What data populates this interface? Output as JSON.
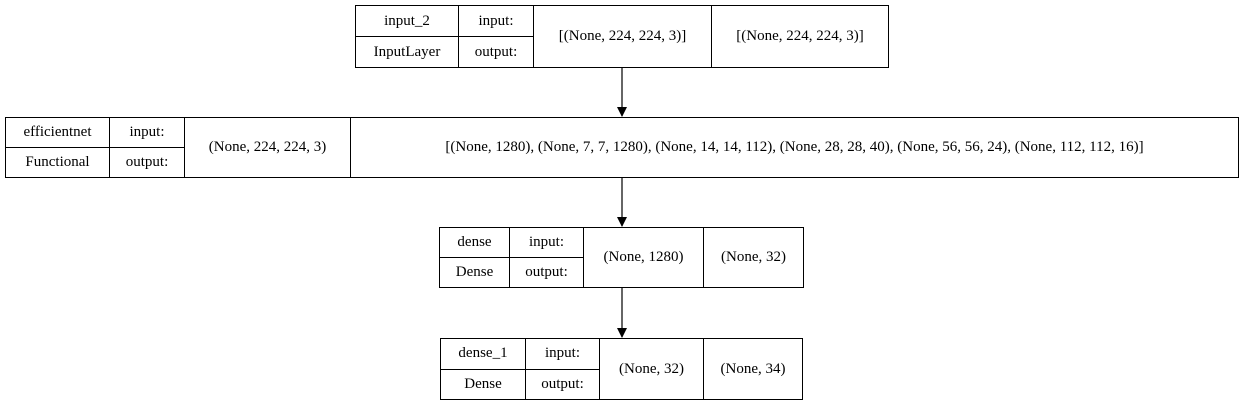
{
  "layers": [
    {
      "name": "input_2",
      "type": "InputLayer",
      "input_label": "input:",
      "output_label": "output:",
      "input_shape": "[(None, 224, 224, 3)]",
      "output_shape": "[(None, 224, 224, 3)]"
    },
    {
      "name": "efficientnet",
      "type": "Functional",
      "input_label": "input:",
      "output_label": "output:",
      "input_shape": "(None, 224, 224, 3)",
      "output_shape": "[(None, 1280), (None, 7, 7, 1280), (None, 14, 14, 112), (None, 28, 28, 40), (None, 56, 56, 24), (None, 112, 112, 16)]"
    },
    {
      "name": "dense",
      "type": "Dense",
      "input_label": "input:",
      "output_label": "output:",
      "input_shape": "(None, 1280)",
      "output_shape": "(None, 32)"
    },
    {
      "name": "dense_1",
      "type": "Dense",
      "input_label": "input:",
      "output_label": "output:",
      "input_shape": "(None, 32)",
      "output_shape": "(None, 34)"
    }
  ],
  "edges": [
    {
      "from": "input_2",
      "to": "efficientnet"
    },
    {
      "from": "efficientnet",
      "to": "dense"
    },
    {
      "from": "dense",
      "to": "dense_1"
    }
  ]
}
